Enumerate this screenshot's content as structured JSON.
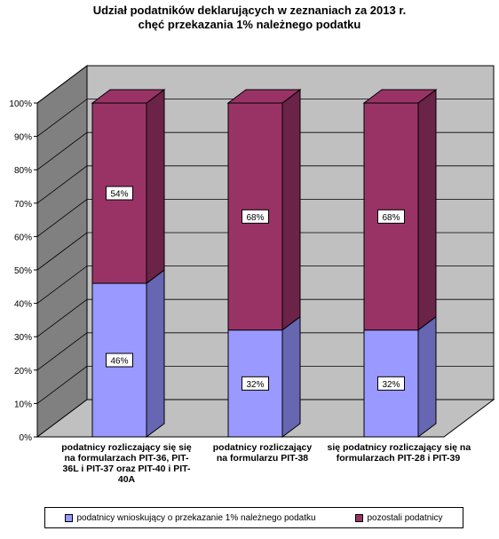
{
  "chart_data": {
    "type": "bar",
    "stacked": true,
    "percent": true,
    "three_d": true,
    "title": [
      "Udział podatników deklarujących w zeznaniach za 2013 r.",
      "chęć przekazania 1% należnego podatku"
    ],
    "categories": [
      [
        "podatnicy rozliczający się się",
        "na formularzach PIT-36, PIT-",
        "36L i PIT-37 oraz PIT-40 i PIT-",
        "40A"
      ],
      [
        "podatnicy rozliczający",
        "na formularzu PIT-38"
      ],
      [
        "się podatnicy rozliczający się na",
        "formularzach PIT-28 i PIT-39"
      ]
    ],
    "series": [
      {
        "name": "podatnicy wnioskujący o przekazanie 1% należnego podatku",
        "values": [
          46,
          32,
          32
        ],
        "labels": [
          "46%",
          "32%",
          "32%"
        ],
        "color": "#9999ff",
        "side_color": "#6666b3"
      },
      {
        "name": "pozostali podatnicy",
        "values": [
          54,
          68,
          68
        ],
        "labels": [
          "54%",
          "68%",
          "68%"
        ],
        "color": "#993366",
        "side_color": "#6b2347"
      }
    ],
    "y_ticks": [
      "0%",
      "10%",
      "20%",
      "30%",
      "40%",
      "50%",
      "60%",
      "70%",
      "80%",
      "90%",
      "100%"
    ],
    "ylim": [
      0,
      100
    ],
    "grid": true,
    "legend_position": "bottom",
    "wall_color": "#c0c0c0",
    "side_wall_color": "#808080",
    "floor_color": "#c0c0c0"
  }
}
